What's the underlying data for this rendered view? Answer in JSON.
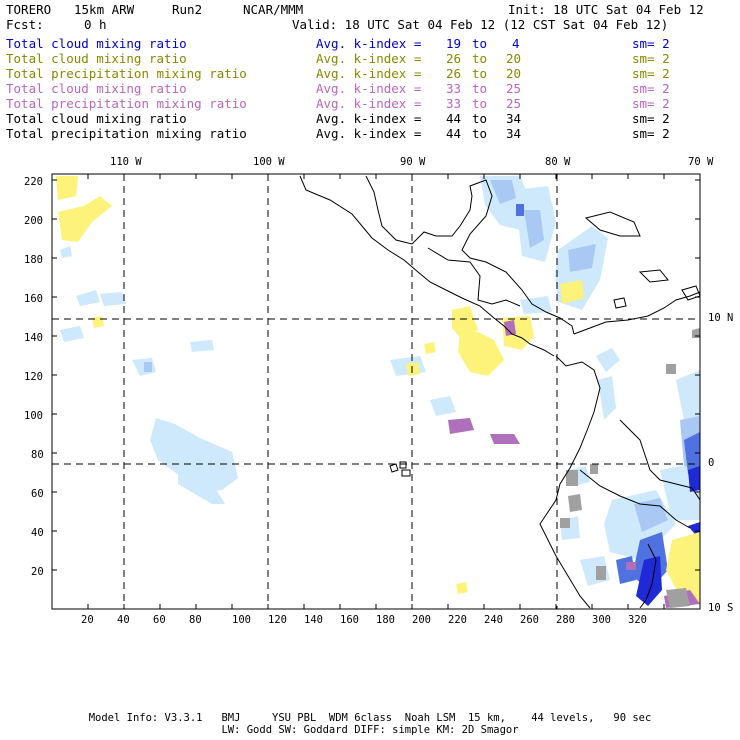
{
  "header": {
    "model": "TORERO",
    "resolution": "15km ARW",
    "run": "Run2",
    "org": "NCAR/MMM",
    "init": "Init: 18 UTC Sat 04 Feb 12",
    "fcst_label": "Fcst:",
    "fcst_value": "0 h",
    "valid": "Valid: 18 UTC Sat 04 Feb 12 (12 CST Sat 04 Feb 12)"
  },
  "legend": [
    {
      "field": "Total cloud mixing ratio",
      "kindex": "Avg. k-index =",
      "from": "19",
      "to_word": "to",
      "to": "4",
      "sm": "sm= 2",
      "color": "#0000cc"
    },
    {
      "field": "Total cloud mixing ratio",
      "kindex": "Avg. k-index =",
      "from": "26",
      "to_word": "to",
      "to": "20",
      "sm": "sm= 2",
      "color": "#888800"
    },
    {
      "field": "Total precipitation mixing ratio",
      "kindex": "Avg. k-index =",
      "from": "26",
      "to_word": "to",
      "to": "20",
      "sm": "sm= 2",
      "color": "#888800"
    },
    {
      "field": "Total cloud mixing ratio",
      "kindex": "Avg. k-index =",
      "from": "33",
      "to_word": "to",
      "to": "25",
      "sm": "sm= 2",
      "color": "#bb66bb"
    },
    {
      "field": "Total precipitation mixing ratio",
      "kindex": "Avg. k-index =",
      "from": "33",
      "to_word": "to",
      "to": "25",
      "sm": "sm= 2",
      "color": "#bb66bb"
    },
    {
      "field": "Total cloud mixing ratio",
      "kindex": "Avg. k-index =",
      "from": "44",
      "to_word": "to",
      "to": "34",
      "sm": "sm= 2",
      "color": "#000000"
    },
    {
      "field": "Total precipitation mixing ratio",
      "kindex": "Avg. k-index =",
      "from": "44",
      "to_word": "to",
      "to": "34",
      "sm": "sm= 2",
      "color": "#000000"
    }
  ],
  "axes": {
    "top_labels": [
      "110 W",
      "100 W",
      "90 W",
      "80 W",
      "70 W"
    ],
    "right_labels": [
      "10 N",
      "0",
      "10 S"
    ],
    "left_ticks": [
      "220",
      "200",
      "180",
      "160",
      "140",
      "120",
      "100",
      "80",
      "60",
      "40",
      "20"
    ],
    "bottom_ticks": [
      "20",
      "40",
      "60",
      "80",
      "100",
      "120",
      "140",
      "160",
      "180",
      "200",
      "220",
      "240",
      "260",
      "280",
      "300",
      "320"
    ]
  },
  "colors": {
    "light_blue": "#cde9fb",
    "mid_blue": "#a9c8f4",
    "blue": "#4f72e0",
    "dark_blue": "#1f2ad6",
    "yellow": "#fdf37a",
    "purple": "#b06fba",
    "gray": "#a0a0a0",
    "coast": "#000000"
  },
  "footer": {
    "line1": "Model Info: V3.3.1   BMJ     YSU PBL  WDM 6class  Noah LSM  15 km,    44 levels,   90 sec",
    "line2": "LW: Godd SW: Goddard DIFF: simple KM: 2D Smagor"
  }
}
